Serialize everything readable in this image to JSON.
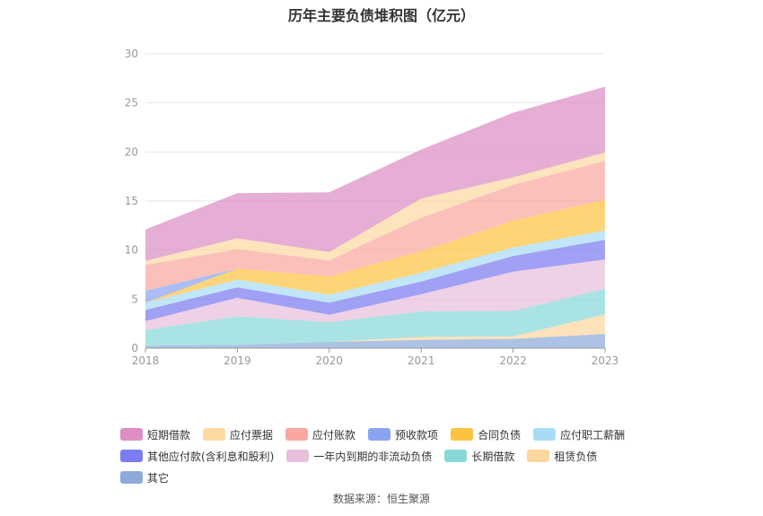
{
  "chart_data": {
    "type": "area",
    "stacked": true,
    "title": "历年主要负债堆积图（亿元）",
    "x": [
      "2018",
      "2019",
      "2020",
      "2021",
      "2022",
      "2023"
    ],
    "yticks": [
      "0",
      "5",
      "10",
      "15",
      "20",
      "25",
      "30"
    ],
    "ylim": [
      0,
      30
    ],
    "grid": true,
    "legend_position": "bottom",
    "series": [
      {
        "name": "其它",
        "color": "#8eaadb",
        "values": [
          0.25,
          0.35,
          0.65,
          0.85,
          0.95,
          1.45
        ]
      },
      {
        "name": "租赁负债",
        "color": "#fdd7a0",
        "values": [
          0,
          0,
          0,
          0.3,
          0.25,
          2.0
        ]
      },
      {
        "name": "长期借款",
        "color": "#88d8d8",
        "values": [
          1.6,
          2.9,
          2.0,
          2.6,
          2.6,
          2.6
        ]
      },
      {
        "name": "一年内到期的非流动负债",
        "color": "#e8bfdc",
        "values": [
          0.9,
          1.9,
          0.75,
          1.75,
          4.0,
          3.0
        ]
      },
      {
        "name": "其他应付款(含利息和股利)",
        "color": "#7b7cf0",
        "values": [
          1.15,
          1.05,
          1.25,
          1.3,
          1.6,
          2.0
        ]
      },
      {
        "name": "应付职工薪酬",
        "color": "#a8dcf5",
        "values": [
          0.75,
          0.8,
          0.8,
          0.9,
          0.85,
          0.95
        ]
      },
      {
        "name": "合同负债",
        "color": "#fcc341",
        "values": [
          0,
          1.1,
          1.85,
          2.2,
          2.75,
          3.15
        ]
      },
      {
        "name": "预收款项",
        "color": "#8aa4f0",
        "values": [
          1.2,
          0,
          0,
          0,
          0,
          0
        ]
      },
      {
        "name": "应付账款",
        "color": "#f9a7a0",
        "values": [
          2.65,
          2.0,
          1.65,
          3.4,
          3.65,
          3.95
        ]
      },
      {
        "name": "应付票据",
        "color": "#fedaa2",
        "values": [
          0.4,
          1.1,
          0.85,
          1.95,
          0.75,
          0.85
        ]
      },
      {
        "name": "短期借款",
        "color": "#dd8fc4",
        "values": [
          3.2,
          4.6,
          6.1,
          5.0,
          6.6,
          6.7
        ]
      }
    ],
    "legend": [
      {
        "name": "短期借款",
        "color": "#dd8fc4"
      },
      {
        "name": "应付票据",
        "color": "#fedaa2"
      },
      {
        "name": "应付账款",
        "color": "#f9a7a0"
      },
      {
        "name": "预收款项",
        "color": "#8aa4f0"
      },
      {
        "name": "合同负债",
        "color": "#fcc341"
      },
      {
        "name": "应付职工薪酬",
        "color": "#a8dcf5"
      },
      {
        "name": "其他应付款(含利息和股利)",
        "color": "#7b7cf0"
      },
      {
        "name": "一年内到期的非流动负债",
        "color": "#e8bfdc"
      },
      {
        "name": "长期借款",
        "color": "#88d8d8"
      },
      {
        "name": "租赁负债",
        "color": "#fdd7a0"
      },
      {
        "name": "其它",
        "color": "#8eaadb"
      }
    ]
  },
  "footer": {
    "source": "数据来源：恒生聚源"
  }
}
